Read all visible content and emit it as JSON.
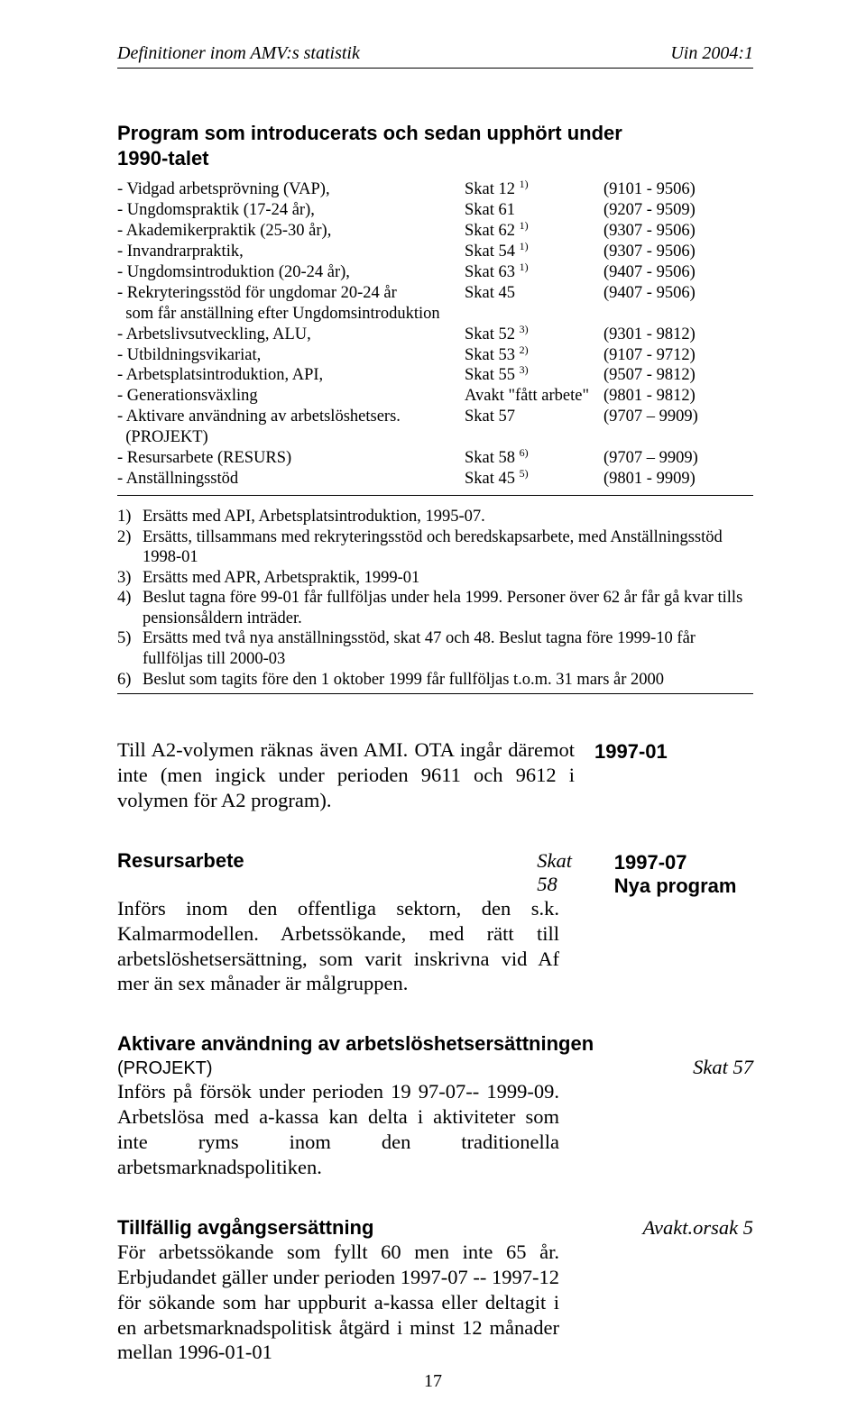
{
  "header": {
    "left": "Definitioner inom AMV:s statistik",
    "right": "Uin 2004:1"
  },
  "prog_title_l1": "Program som introducerats och sedan upphört under",
  "prog_title_l2": "1990-talet",
  "programs": [
    {
      "name": "- Vidgad arbetsprövning (VAP),",
      "code": "Skat 12",
      "sup": "1)",
      "range": "(9101 - 9506)"
    },
    {
      "name": "- Ungdomspraktik (17-24 år),",
      "code": "Skat 61",
      "sup": "",
      "range": "(9207 - 9509)"
    },
    {
      "name": "- Akademikerpraktik (25-30 år),",
      "code": "Skat 62",
      "sup": "1)",
      "range": "(9307 - 9506)"
    },
    {
      "name": "- Invandrarpraktik,",
      "code": "Skat 54",
      "sup": "1)",
      "range": "(9307 - 9506)"
    },
    {
      "name": "- Ungdomsintroduktion (20-24 år),",
      "code": "Skat 63",
      "sup": "1)",
      "range": "(9407 - 9506)"
    },
    {
      "name": "- Rekryteringsstöd för ungdomar 20-24 år",
      "code": "Skat 45",
      "sup": "",
      "range": "(9407 - 9506)"
    }
  ],
  "note_line": "  som får anställning efter Ungdomsintroduktion",
  "programs2": [
    {
      "name": "- Arbetslivsutveckling, ALU,",
      "code": "Skat 52",
      "sup": "3)",
      "range": "(9301 - 9812)"
    },
    {
      "name": "- Utbildningsvikariat,",
      "code": "Skat 53",
      "sup": "2)",
      "range": "(9107 - 9712)"
    },
    {
      "name": "- Arbetsplatsintroduktion, API,",
      "code": "Skat 55",
      "sup": "3)",
      "range": "(9507 - 9812)"
    },
    {
      "name": "- Generationsväxling",
      "code": "Avakt \"fått arbete\"",
      "sup": "",
      "range": "(9801 - 9812)"
    },
    {
      "name": "- Aktivare användning av arbetslöshetsers.",
      "code": "Skat 57",
      "sup": "",
      "range": "(9707 – 9909)"
    }
  ],
  "projekt_line": "  (PROJEKT)",
  "programs3": [
    {
      "name": "- Resursarbete (RESURS)",
      "code": "Skat 58",
      "sup": "6)",
      "range": "(9707 – 9909)"
    },
    {
      "name": "- Anställningsstöd",
      "code": "Skat 45",
      "sup": "5)",
      "range": "(9801 - 9909)"
    }
  ],
  "footnotes": [
    {
      "n": "1)",
      "t": "Ersätts med API, Arbetsplatsintroduktion, 1995-07."
    },
    {
      "n": "2)",
      "t": "Ersätts, tillsammans med rekryteringsstöd och beredskapsarbete, med Anställningsstöd 1998-01"
    },
    {
      "n": "3)",
      "t": "Ersätts med APR, Arbetspraktik, 1999-01"
    },
    {
      "n": "4)",
      "t": "Beslut tagna före 99-01 får fullföljas under hela 1999. Personer över 62 år får gå kvar tills pensionsåldern inträder."
    },
    {
      "n": "5)",
      "t": "Ersätts med två nya anställningsstöd, skat 47 och 48. Beslut tagna före 1999-10 får fullföljas till 2000-03"
    },
    {
      "n": "6)",
      "t": "Beslut som tagits före den 1 oktober 1999 får fullföljas t.o.m. 31 mars år 2000"
    }
  ],
  "para1": "Till A2-volymen räknas även AMI. OTA ingår däremot inte (men ingick under perioden 9611 och 9612 i volymen för A2 program).",
  "para1_margin": "1997-01",
  "resurs": {
    "title": "Resursarbete",
    "skat": "Skat 58",
    "margin1": "1997-07",
    "margin2": "Nya program",
    "body": "Införs inom den offentliga sektorn, den s.k. Kalmarmodellen. Arbetssökande, med rätt till arbetslöshetsersättning, som varit inskrivna vid Af mer än sex månader är målgruppen."
  },
  "aktivare": {
    "title": "Aktivare användning av arbetslöshetsersättningen",
    "sub": "(PROJEKT)",
    "skat": "Skat 57",
    "body": "Införs på försök under perioden 19 97-07-- 1999-09. Arbetslösa med a-kassa kan delta i aktiviteter som inte ryms inom den traditionella arbetsmarknadspolitiken."
  },
  "tillfallig": {
    "title": "Tillfällig avgångsersättning",
    "skat": "Avakt.orsak 5",
    "body": "För arbetssökande som fyllt 60 men inte 65 år. Erbjudandet gäller under perioden 1997-07 -- 1997-12 för sökande som har uppburit a-kassa eller deltagit i en arbetsmarknadspolitisk åtgärd i minst 12 månader mellan 1996-01-01"
  },
  "page_num": "17"
}
